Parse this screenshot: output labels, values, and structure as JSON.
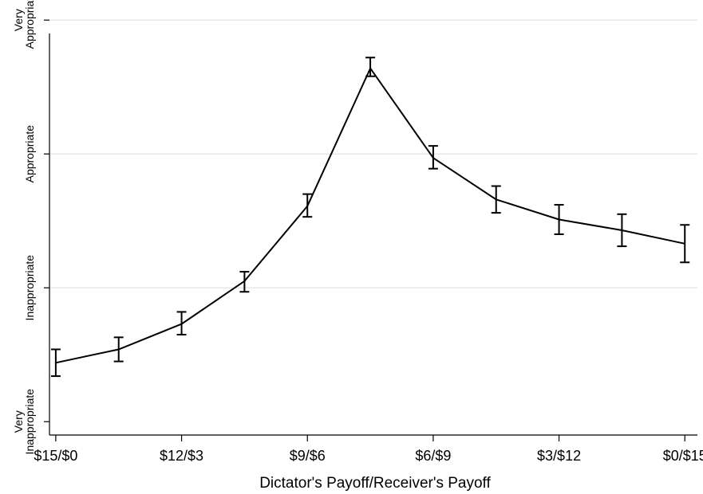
{
  "chart_data": {
    "type": "line",
    "title": "",
    "xlabel": "Dictator's Payoff/Receiver's Payoff",
    "ylabel": "",
    "x_tick_labels": [
      "$15/$0",
      "$12/$3",
      "$9/$6",
      "$6/$9",
      "$3/$12",
      "$0/$15"
    ],
    "y_tick_labels": [
      {
        "lines": [
          "Very",
          "Inappropriate"
        ]
      },
      {
        "lines": [
          "Inappropriate"
        ]
      },
      {
        "lines": [
          "Appropriate"
        ]
      },
      {
        "lines": [
          "Very",
          "Appropriate"
        ]
      }
    ],
    "xlim": [
      -0.1,
      10.2
    ],
    "ylim": [
      -1.1,
      1.9
    ],
    "grid": true,
    "series": [
      {
        "x": [
          0,
          1,
          2,
          3,
          4,
          5,
          6,
          7,
          8,
          9,
          10
        ],
        "y": [
          -0.56,
          -0.46,
          -0.27,
          0.05,
          0.61,
          1.64,
          0.97,
          0.66,
          0.51,
          0.43,
          0.33
        ],
        "err_low": [
          -0.66,
          -0.55,
          -0.35,
          -0.03,
          0.53,
          1.58,
          0.89,
          0.56,
          0.4,
          0.31,
          0.19
        ],
        "err_high": [
          -0.46,
          -0.37,
          -0.18,
          0.12,
          0.7,
          1.72,
          1.06,
          0.76,
          0.62,
          0.55,
          0.47
        ]
      }
    ]
  }
}
